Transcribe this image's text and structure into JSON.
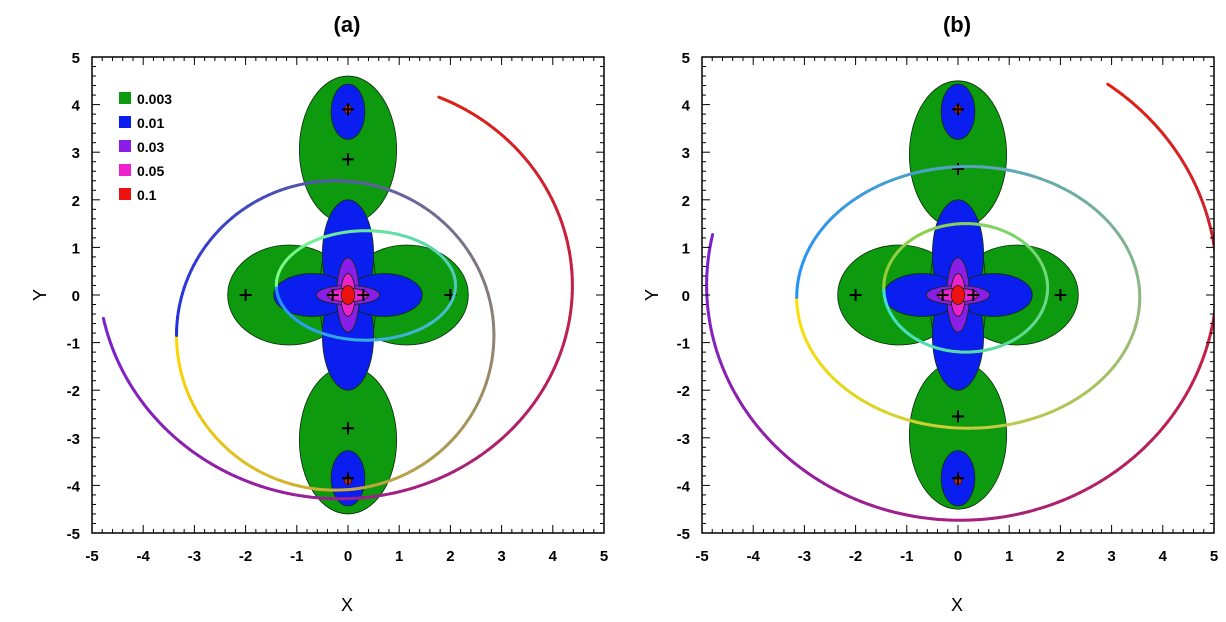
{
  "chart_data": [
    {
      "type": "contour",
      "title": "(a)",
      "xlabel": "X",
      "ylabel": "Y",
      "xlim": [
        -5,
        5
      ],
      "ylim": [
        -5,
        5
      ],
      "xticks": [
        "-5",
        "-4",
        "-3",
        "-2",
        "-1",
        "0",
        "1",
        "2",
        "3",
        "4",
        "5"
      ],
      "yticks": [
        "-5",
        "-4",
        "-3",
        "-2",
        "-1",
        "0",
        "1",
        "2",
        "3",
        "4",
        "5"
      ],
      "grid": false,
      "legend": {
        "placement": "top-left",
        "entries": [
          {
            "label": "0.003",
            "color": "#0e9a0e"
          },
          {
            "label": "0.01",
            "color": "#0a1ef0"
          },
          {
            "label": "0.03",
            "color": "#8a1ee6"
          },
          {
            "label": "0.05",
            "color": "#ee22cc"
          },
          {
            "label": "0.1",
            "color": "#ee1111"
          }
        ]
      },
      "markers": [
        [
          0,
          3.9
        ],
        [
          0,
          2.85
        ],
        [
          0,
          -2.8
        ],
        [
          0,
          -3.85
        ],
        [
          -2,
          0
        ],
        [
          2,
          0
        ],
        [
          -0.3,
          0
        ],
        [
          0.3,
          0
        ]
      ],
      "ellipses": [
        {
          "cx": 0.35,
          "cy": 0.2,
          "rx": 1.75,
          "ry": 1.15,
          "from": "#1e90ff",
          "to": "#7fff7f"
        },
        {
          "cx": -0.25,
          "cy": -0.85,
          "rx": 3.1,
          "ry": 3.25,
          "from": "#ffd700",
          "to": "#2030e0"
        }
      ],
      "spiral": {
        "cx": 0,
        "cy": 0.35,
        "r_start": 4.85,
        "r_end": 4.2,
        "angle_start": 190,
        "angle_end": 425,
        "from": "#7a20d0",
        "to": "#e02010"
      }
    },
    {
      "type": "contour",
      "title": "(b)",
      "xlabel": "X",
      "ylabel": "Y",
      "xlim": [
        -5,
        5
      ],
      "ylim": [
        -5,
        5
      ],
      "xticks": [
        "-5",
        "-4",
        "-3",
        "-2",
        "-1",
        "0",
        "1",
        "2",
        "3",
        "4",
        "5"
      ],
      "yticks": [
        "-5",
        "-4",
        "-3",
        "-2",
        "-1",
        "0",
        "1",
        "2",
        "3",
        "4",
        "5"
      ],
      "grid": false,
      "markers": [
        [
          0,
          3.9
        ],
        [
          0,
          2.65
        ],
        [
          0,
          -2.55
        ],
        [
          0,
          -3.85
        ],
        [
          -2,
          0
        ],
        [
          2,
          0
        ],
        [
          -0.3,
          0
        ],
        [
          0.3,
          0
        ]
      ],
      "ellipses": [
        {
          "cx": 0.15,
          "cy": 0.15,
          "rx": 1.6,
          "ry": 1.35,
          "from": "#40e0d0",
          "to": "#9acd32"
        },
        {
          "cx": 0.2,
          "cy": -0.05,
          "rx": 3.35,
          "ry": 2.75,
          "from": "#ffe000",
          "to": "#1e90ff"
        }
      ],
      "spiral": {
        "cx": 0,
        "cy": 0.25,
        "r_start": 4.9,
        "r_end": 5.1,
        "angle_start": 168,
        "angle_end": 415,
        "from": "#7a20d0",
        "to": "#e02010"
      }
    }
  ]
}
